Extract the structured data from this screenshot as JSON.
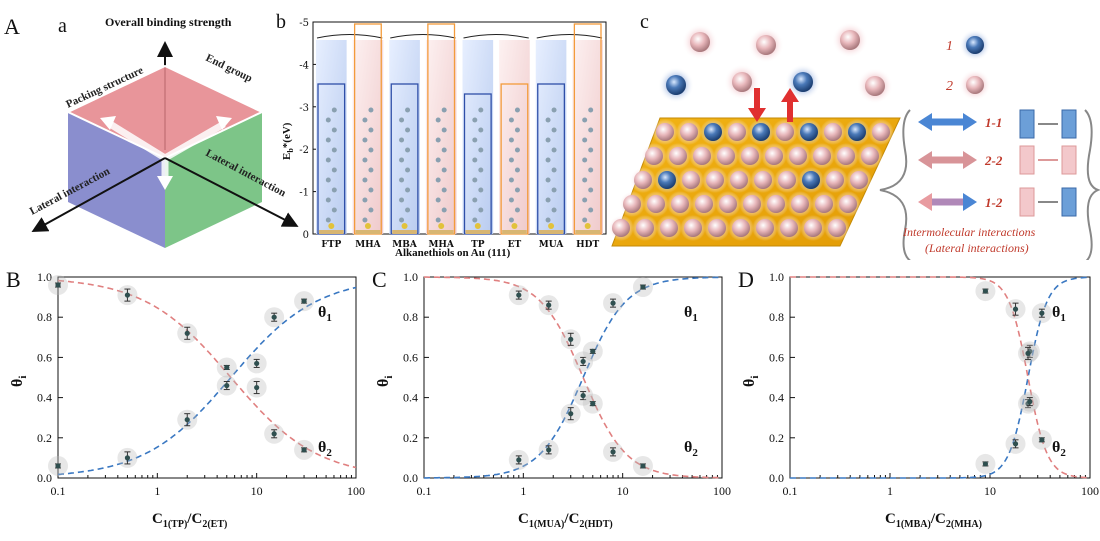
{
  "figure": {
    "panel_labels": {
      "A": "A",
      "a": "a",
      "b": "b",
      "c": "c",
      "B": "B",
      "C": "C",
      "D": "D"
    }
  },
  "panel_a": {
    "top_axis": "Overall binding strength",
    "left_top_face": "Packing structure",
    "right_top_face": "End group",
    "lateral_left": "Lateral interaction",
    "lateral_right": "Lateral interaction",
    "colors": {
      "top": "#e58a8f",
      "left": "#7d82c9",
      "right": "#6fbf7b"
    }
  },
  "panel_b": {
    "ylabel": "E",
    "ylabel_sub": "b",
    "ylabel_unit": "*(eV)",
    "xlabel": "Alkanethiols on Au (111)",
    "yticks": [
      "-5",
      "-4",
      "-3",
      "-2",
      "-1",
      "0"
    ],
    "bars": [
      "FTP",
      "MHA",
      "MBA",
      "MHA",
      "TP",
      "ET",
      "MUA",
      "HDT"
    ]
  },
  "panel_c": {
    "legend_1": "1",
    "legend_2": "2",
    "int_11": "1-1",
    "int_22": "2-2",
    "int_12": "1-2",
    "caption_1": "Intermolecular interactions",
    "caption_2": "(Lateral interactions)"
  },
  "chart_data": [
    {
      "type": "scatter",
      "panel": "B",
      "xlabel": "C1(TP)/C2(ET)",
      "xlabel_parts": {
        "c1": "C",
        "s1": "1(TP)",
        "sl": "/",
        "c2": "C",
        "s2": "2(ET)"
      },
      "ylabel": "θi",
      "xscale": "log",
      "xlim": [
        0.1,
        100
      ],
      "ylim": [
        0,
        1.0
      ],
      "xtick_labels": [
        "0.1",
        "1",
        "10",
        "100"
      ],
      "ytick_labels": [
        "0.0",
        "0.2",
        "0.4",
        "0.6",
        "0.8",
        "1.0"
      ],
      "series": [
        {
          "name": "θ1",
          "color": "#3a78c2",
          "x": [
            0.1,
            0.5,
            2,
            5,
            10,
            15,
            30
          ],
          "y": [
            0.06,
            0.1,
            0.29,
            0.46,
            0.57,
            0.8,
            0.88
          ],
          "err": [
            0.01,
            0.03,
            0.03,
            0.02,
            0.02,
            0.02,
            0.01
          ]
        },
        {
          "name": "θ2",
          "color": "#e08080",
          "x": [
            0.1,
            0.5,
            2,
            5,
            10,
            15,
            30
          ],
          "y": [
            0.96,
            0.91,
            0.72,
            0.55,
            0.45,
            0.22,
            0.14
          ],
          "err": [
            0.01,
            0.03,
            0.03,
            0.01,
            0.03,
            0.02,
            0.01
          ]
        }
      ],
      "fits": [
        {
          "series": "θ1",
          "k": 5.5,
          "n": 1.0
        },
        {
          "series": "θ2",
          "k": 5.5,
          "n": 1.0
        }
      ],
      "series_labels": [
        "θ1",
        "θ2"
      ]
    },
    {
      "type": "scatter",
      "panel": "C",
      "xlabel": "C1(MUA)/C2(HDT)",
      "xlabel_parts": {
        "c1": "C",
        "s1": "1(MUA)",
        "sl": "/",
        "c2": "C",
        "s2": "2(HDT)"
      },
      "ylabel": "θi",
      "xscale": "log",
      "xlim": [
        0.1,
        100
      ],
      "ylim": [
        0,
        1.0
      ],
      "xtick_labels": [
        "0.1",
        "1",
        "10",
        "100"
      ],
      "ytick_labels": [
        "0.0",
        "0.2",
        "0.4",
        "0.6",
        "0.8",
        "1.0"
      ],
      "series": [
        {
          "name": "θ1",
          "color": "#3a78c2",
          "x": [
            0.9,
            1.8,
            3.0,
            4.0,
            5.0,
            8.0,
            16.0
          ],
          "y": [
            0.09,
            0.14,
            0.32,
            0.58,
            0.63,
            0.87,
            0.95
          ],
          "err": [
            0.02,
            0.02,
            0.03,
            0.02,
            0.01,
            0.02,
            0.01
          ]
        },
        {
          "name": "θ2",
          "color": "#e08080",
          "x": [
            0.9,
            1.8,
            3.0,
            4.0,
            5.0,
            8.0,
            16.0
          ],
          "y": [
            0.91,
            0.86,
            0.69,
            0.41,
            0.37,
            0.13,
            0.06
          ],
          "err": [
            0.02,
            0.02,
            0.03,
            0.02,
            0.01,
            0.02,
            0.01
          ]
        }
      ],
      "fits": [
        {
          "series": "θ1",
          "k": 4.0,
          "n": 2.0
        },
        {
          "series": "θ2",
          "k": 4.0,
          "n": 2.0
        }
      ],
      "series_labels": [
        "θ1",
        "θ2"
      ]
    },
    {
      "type": "scatter",
      "panel": "D",
      "xlabel": "C1(MBA)/C2(MHA)",
      "xlabel_parts": {
        "c1": "C",
        "s1": "1(MBA)",
        "sl": "/",
        "c2": "C",
        "s2": "2(MHA)"
      },
      "ylabel": "θi",
      "xscale": "log",
      "xlim": [
        0.1,
        100
      ],
      "ylim": [
        0,
        1.0
      ],
      "xtick_labels": [
        "0.1",
        "1",
        "10",
        "100"
      ],
      "ytick_labels": [
        "0.0",
        "0.2",
        "0.4",
        "0.6",
        "0.8",
        "1.0"
      ],
      "series": [
        {
          "name": "θ1",
          "color": "#3a78c2",
          "x": [
            9,
            18,
            24,
            25,
            33
          ],
          "y": [
            0.07,
            0.17,
            0.37,
            0.63,
            0.82
          ],
          "err": [
            0.01,
            0.02,
            0.02,
            0.03,
            0.02
          ]
        },
        {
          "name": "θ2",
          "color": "#e08080",
          "x": [
            9,
            18,
            24,
            25,
            33
          ],
          "y": [
            0.93,
            0.84,
            0.62,
            0.38,
            0.19
          ],
          "err": [
            0.01,
            0.03,
            0.03,
            0.02,
            0.01
          ]
        }
      ],
      "fits": [
        {
          "series": "θ1",
          "k": 24.0,
          "n": 4.5
        },
        {
          "series": "θ2",
          "k": 24.0,
          "n": 4.5
        }
      ],
      "series_labels": [
        "θ1",
        "θ2"
      ]
    }
  ]
}
